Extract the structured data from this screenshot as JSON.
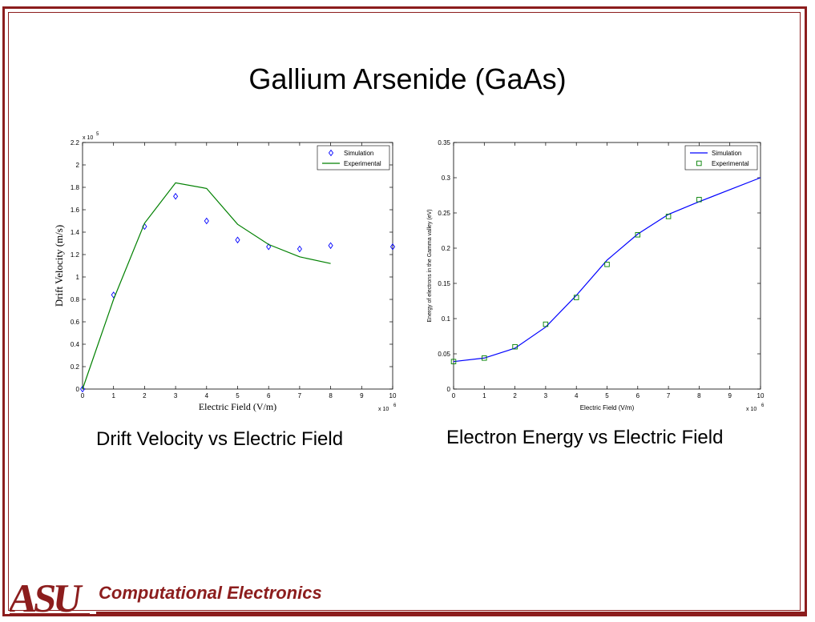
{
  "slide": {
    "title": "Gallium Arsenide (GaAs)",
    "caption_left": "Drift Velocity vs Electric Field",
    "caption_right": "Electron Energy vs Electric Field",
    "footer": "Computational Electronics",
    "logo": "ASU",
    "accent_color": "#8c1d1d"
  },
  "chart_data": [
    {
      "type": "line",
      "title": "",
      "xlabel": "Electric Field (V/m)",
      "ylabel": "Drift Velocity (m/s)",
      "x_multiplier": "x 10",
      "x_exponent": "6",
      "y_multiplier": "x 10",
      "y_exponent": "5",
      "xlim": [
        0,
        10
      ],
      "ylim": [
        0,
        2.2
      ],
      "xticks": [
        "0",
        "1",
        "2",
        "3",
        "4",
        "5",
        "6",
        "7",
        "8",
        "9",
        "10"
      ],
      "yticks": [
        "0",
        "0.2",
        "0.4",
        "0.6",
        "0.8",
        "1",
        "1.2",
        "1.4",
        "1.6",
        "1.8",
        "2",
        "2.2"
      ],
      "grid": false,
      "legend": "top-right",
      "series": [
        {
          "name": "Simulation",
          "style": "marker",
          "marker": "diamond",
          "color": "#0000ff",
          "x": [
            0,
            1,
            2,
            3,
            4,
            5,
            6,
            7,
            8,
            10
          ],
          "y": [
            0,
            0.84,
            1.45,
            1.72,
            1.5,
            1.33,
            1.27,
            1.25,
            1.28,
            1.27
          ]
        },
        {
          "name": "Experimental",
          "style": "line",
          "color": "#008000",
          "x": [
            0,
            1,
            2,
            3,
            4,
            5,
            6,
            7,
            8
          ],
          "y": [
            0,
            0.8,
            1.48,
            1.84,
            1.79,
            1.47,
            1.29,
            1.18,
            1.12
          ]
        }
      ]
    },
    {
      "type": "line",
      "title": "",
      "xlabel": "Electric Field (V/m)",
      "ylabel": "Energy of electrons in the Gamma valley (eV)",
      "x_multiplier": "x 10",
      "x_exponent": "6",
      "xlim": [
        0,
        10
      ],
      "ylim": [
        0,
        0.35
      ],
      "xticks": [
        "0",
        "1",
        "2",
        "3",
        "4",
        "5",
        "6",
        "7",
        "8",
        "9",
        "10"
      ],
      "yticks": [
        "0",
        "0.05",
        "0.1",
        "0.15",
        "0.2",
        "0.25",
        "0.3",
        "0.35"
      ],
      "grid": false,
      "legend": "top-right",
      "series": [
        {
          "name": "Simulation",
          "style": "line",
          "color": "#0000ff",
          "x": [
            0,
            1,
            2,
            3,
            4,
            5,
            6,
            7,
            8,
            9,
            10
          ],
          "y": [
            0.039,
            0.044,
            0.058,
            0.088,
            0.133,
            0.183,
            0.22,
            0.248,
            0.266,
            0.283,
            0.3
          ]
        },
        {
          "name": "Experimental",
          "style": "marker",
          "marker": "square",
          "color": "#008000",
          "x": [
            0,
            1,
            2,
            3,
            4,
            5,
            6,
            7,
            8
          ],
          "y": [
            0.039,
            0.044,
            0.06,
            0.092,
            0.13,
            0.177,
            0.219,
            0.245,
            0.269
          ]
        }
      ]
    }
  ]
}
